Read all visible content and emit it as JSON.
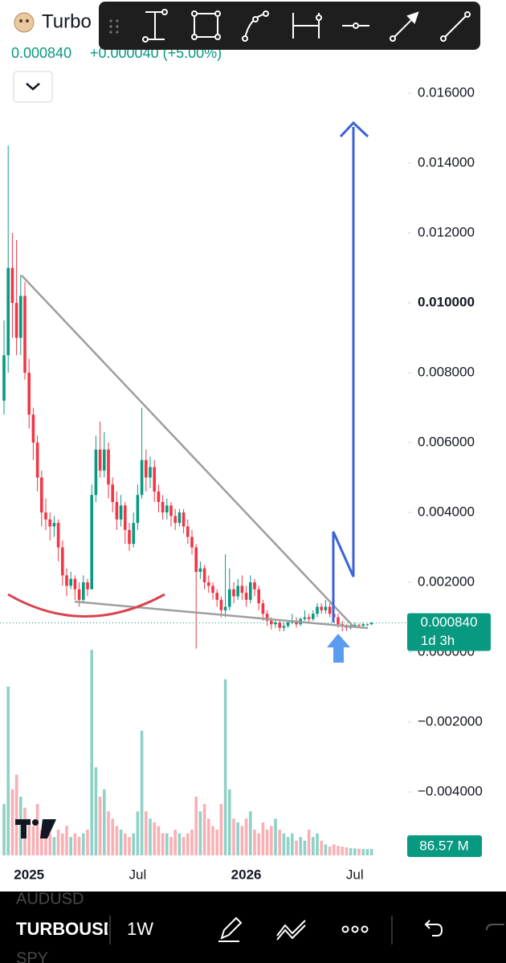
{
  "header": {
    "symbol": "Turbo",
    "price": "0.000840",
    "change": "+0.000040 (+5.00%)"
  },
  "chart_data": {
    "type": "candlestick",
    "categories": [
      null,
      null,
      null,
      null,
      null,
      null,
      "2025",
      null,
      null,
      null,
      null,
      null,
      null,
      null,
      null,
      null,
      null,
      null,
      null,
      null,
      null,
      null,
      null,
      null,
      null,
      null,
      null,
      null,
      null,
      null,
      null,
      null,
      "Jul",
      null,
      null,
      null,
      null,
      null,
      null,
      null,
      null,
      null,
      null,
      null,
      null,
      null,
      null,
      null,
      null,
      null,
      null,
      null,
      null,
      null,
      null,
      null,
      null,
      null,
      "2026",
      null,
      null,
      null,
      null,
      null,
      null,
      null,
      null,
      null,
      null,
      null,
      null,
      null,
      null,
      null,
      null,
      null,
      null,
      null,
      null,
      null,
      null,
      null,
      null,
      null,
      "Jul",
      null,
      null,
      null,
      null
    ],
    "open": [
      0.0072,
      0.0085,
      0.011,
      0.01,
      0.009,
      0.0102,
      0.008,
      0.0068,
      0.006,
      0.005,
      0.004,
      0.0038,
      0.0036,
      0.0037,
      0.003,
      0.0022,
      0.0019,
      0.0021,
      0.0018,
      0.0015,
      0.002,
      0.0018,
      0.0045,
      0.0058,
      0.0052,
      0.0058,
      0.0048,
      0.0043,
      0.0038,
      0.0042,
      0.0035,
      0.0031,
      0.0037,
      0.0045,
      0.0055,
      0.005,
      0.0053,
      0.0046,
      0.0043,
      0.004,
      0.0042,
      0.0039,
      0.0037,
      0.004,
      0.0036,
      0.0033,
      0.003,
      0.0023,
      0.0024,
      0.002,
      0.0019,
      0.0017,
      0.0015,
      0.0012,
      0.0013,
      0.0018,
      0.0016,
      0.0019,
      0.0017,
      0.0015,
      0.002,
      0.0018,
      0.0014,
      0.0011,
      0.0009,
      0.0008,
      0.00085,
      0.0007,
      0.00075,
      0.00085,
      0.0009,
      0.0008,
      0.00095,
      0.001,
      0.00095,
      0.0011,
      0.0013,
      0.0012,
      0.0013,
      0.0011,
      0.001,
      0.0008,
      0.00075,
      0.0007,
      0.00072,
      0.00078,
      0.00076,
      0.0008,
      0.0008
    ],
    "high": [
      0.0095,
      0.0145,
      0.012,
      0.0118,
      0.0108,
      0.0106,
      0.0084,
      0.007,
      0.0062,
      0.0052,
      0.0044,
      0.004,
      0.0039,
      0.0038,
      0.0032,
      0.0024,
      0.0023,
      0.0022,
      0.002,
      0.0022,
      0.0021,
      0.0048,
      0.0062,
      0.0066,
      0.0063,
      0.006,
      0.005,
      0.0046,
      0.0045,
      0.0043,
      0.0037,
      0.004,
      0.0048,
      0.007,
      0.0058,
      0.0056,
      0.0055,
      0.0048,
      0.0045,
      0.0044,
      0.0043,
      0.0041,
      0.0041,
      0.0041,
      0.0038,
      0.0035,
      0.0031,
      0.0026,
      0.0025,
      0.0022,
      0.002,
      0.0018,
      0.0016,
      0.0028,
      0.0024,
      0.002,
      0.0021,
      0.0022,
      0.0019,
      0.0022,
      0.0021,
      0.0019,
      0.0015,
      0.0012,
      0.001,
      0.00095,
      0.0009,
      0.00085,
      0.0009,
      0.0011,
      0.001,
      0.001,
      0.0012,
      0.0011,
      0.0012,
      0.0014,
      0.0014,
      0.0015,
      0.0014,
      0.0012,
      0.0011,
      0.0009,
      0.0008,
      0.0008,
      0.00085,
      0.00082,
      0.00085,
      0.00082,
      0.00086
    ],
    "low": [
      0.0068,
      0.008,
      0.009,
      0.0085,
      0.0085,
      0.0078,
      0.0064,
      0.0055,
      0.0046,
      0.0036,
      0.0035,
      0.0032,
      0.0033,
      0.0026,
      0.0019,
      0.0016,
      0.0018,
      0.0015,
      0.0013,
      0.0014,
      0.0016,
      0.0018,
      0.0043,
      0.005,
      0.005,
      0.0044,
      0.004,
      0.0035,
      0.0036,
      0.0031,
      0.0029,
      0.003,
      0.0035,
      0.0044,
      0.0046,
      0.0047,
      0.0043,
      0.004,
      0.0038,
      0.0038,
      0.0036,
      0.0035,
      0.0036,
      0.0034,
      0.0031,
      0.0028,
      0.0001,
      0.0021,
      0.0018,
      0.0017,
      0.0015,
      0.0013,
      0.001,
      0.001,
      0.0012,
      0.0014,
      0.0015,
      0.0015,
      0.0013,
      0.0014,
      0.0016,
      0.0012,
      0.0009,
      0.00075,
      0.00065,
      0.0007,
      0.0006,
      0.0006,
      0.0007,
      0.0008,
      0.0007,
      0.00075,
      0.0009,
      0.00085,
      0.0009,
      0.001,
      0.0011,
      0.0011,
      0.001,
      0.0009,
      0.0007,
      0.0006,
      0.0006,
      0.00065,
      0.0007,
      0.0007,
      0.00072,
      0.00075,
      0.00078
    ],
    "close": [
      0.0085,
      0.011,
      0.01,
      0.009,
      0.0102,
      0.008,
      0.0068,
      0.006,
      0.005,
      0.004,
      0.0038,
      0.0036,
      0.0037,
      0.003,
      0.0022,
      0.0019,
      0.0021,
      0.0018,
      0.0015,
      0.002,
      0.0018,
      0.0045,
      0.0058,
      0.0052,
      0.0058,
      0.0048,
      0.0043,
      0.0038,
      0.0042,
      0.0035,
      0.0031,
      0.0037,
      0.0045,
      0.0055,
      0.005,
      0.0053,
      0.0046,
      0.0043,
      0.004,
      0.0042,
      0.0039,
      0.0037,
      0.004,
      0.0036,
      0.0033,
      0.003,
      0.0023,
      0.0024,
      0.002,
      0.0019,
      0.0017,
      0.0015,
      0.0012,
      0.0013,
      0.0018,
      0.0016,
      0.0019,
      0.0017,
      0.0015,
      0.002,
      0.0018,
      0.0014,
      0.0011,
      0.0009,
      0.0008,
      0.00085,
      0.0007,
      0.00075,
      0.00085,
      0.0009,
      0.0008,
      0.00095,
      0.001,
      0.00095,
      0.0011,
      0.0013,
      0.0012,
      0.0013,
      0.0011,
      0.001,
      0.0008,
      0.00075,
      0.0007,
      0.00072,
      0.00078,
      0.00076,
      0.0008,
      0.0008,
      0.00084
    ],
    "volume": {
      "values": [
        700,
        2300,
        900,
        1100,
        800,
        650,
        500,
        400,
        700,
        350,
        450,
        300,
        250,
        350,
        300,
        400,
        250,
        300,
        250,
        300,
        350,
        2800,
        1200,
        800,
        900,
        600,
        500,
        400,
        350,
        300,
        250,
        300,
        600,
        1700,
        600,
        500,
        450,
        400,
        300,
        300,
        250,
        350,
        300,
        250,
        300,
        350,
        800,
        600,
        700,
        500,
        400,
        350,
        700,
        2400,
        900,
        500,
        450,
        400,
        500,
        600,
        350,
        300,
        450,
        350,
        400,
        500,
        350,
        300,
        250,
        300,
        200,
        250,
        200,
        350,
        250,
        300,
        200,
        150,
        120,
        150,
        130,
        120,
        110,
        100,
        95,
        90,
        88,
        87,
        86.57
      ],
      "last_label": "86.57 M"
    },
    "volume_ylim": [
      0,
      2900
    ],
    "ylim": [
      -0.006,
      0.0166
    ],
    "yticks": [
      {
        "value": 0.016,
        "label": "0.016000"
      },
      {
        "value": 0.014,
        "label": "0.014000"
      },
      {
        "value": 0.012,
        "label": "0.012000"
      },
      {
        "value": 0.01,
        "label": "0.010000"
      },
      {
        "value": 0.008,
        "label": "0.008000"
      },
      {
        "value": 0.006,
        "label": "0.006000"
      },
      {
        "value": 0.004,
        "label": "0.004000"
      },
      {
        "value": 0.002,
        "label": "0.002000"
      },
      {
        "value": 0,
        "label": "0.000000"
      },
      {
        "value": -0.002,
        "label": "−0.002000"
      },
      {
        "value": -0.004,
        "label": "−0.004000"
      }
    ],
    "up_color": "#089981",
    "down_color": "#f23645",
    "last_price_label": "0.000840",
    "countdown": "1d 3h"
  },
  "bottom_bar": {
    "symbols": [
      "AUDUSD",
      "TURBOUSD",
      "SPY"
    ],
    "interval": "1W"
  }
}
